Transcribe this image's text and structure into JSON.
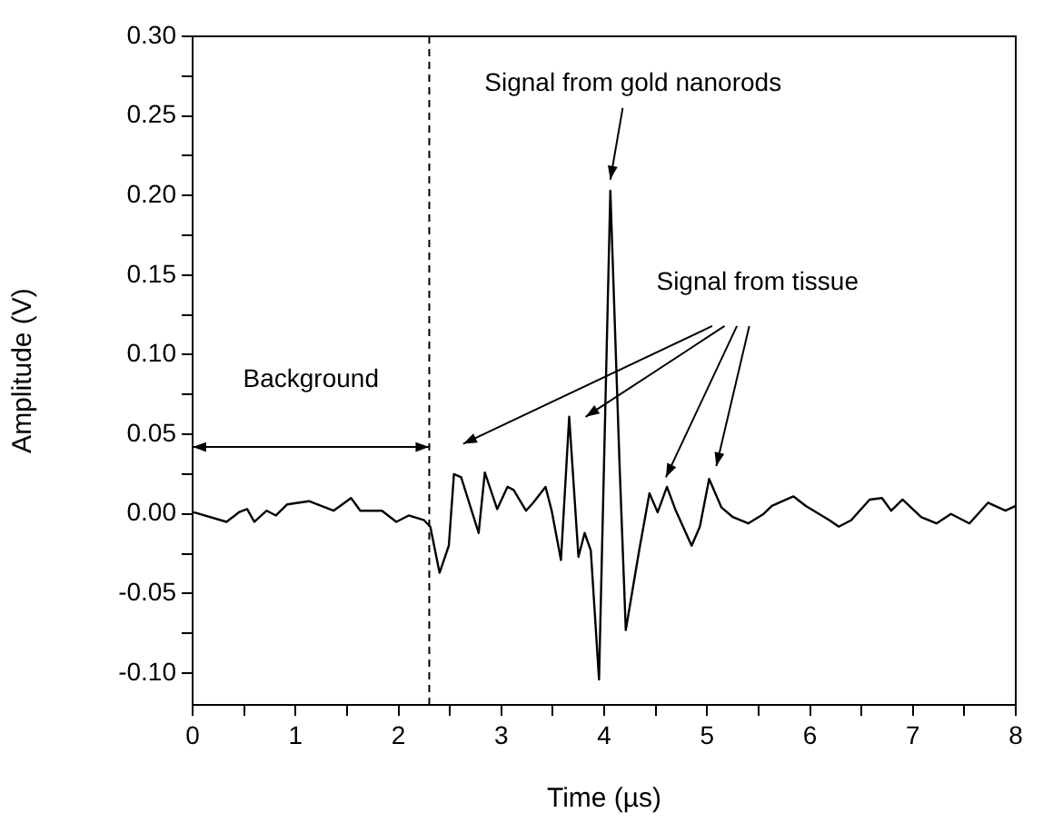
{
  "chart_data": {
    "type": "line",
    "xlabel": "Time (µs)",
    "ylabel": "Amplitude (V)",
    "xlim": [
      0,
      8
    ],
    "ylim": [
      -0.12,
      0.3
    ],
    "xticks": [
      0,
      {
        "value": 0.5,
        "label": null
      },
      1,
      {
        "value": 1.5,
        "label": null
      },
      2,
      {
        "value": 2.5,
        "label": null
      },
      3,
      {
        "value": 3.5,
        "label": null
      },
      4,
      {
        "value": 4.5,
        "label": null
      },
      5,
      {
        "value": 5.5,
        "label": null
      },
      6,
      {
        "value": 6.5,
        "label": null
      },
      7,
      {
        "value": 7.5,
        "label": null
      },
      8
    ],
    "yticks": [
      {
        "value": -0.1,
        "label": "-0.10"
      },
      {
        "value": -0.075,
        "label": null
      },
      {
        "value": -0.05,
        "label": "-0.05"
      },
      {
        "value": -0.025,
        "label": null
      },
      {
        "value": 0,
        "label": "0.00"
      },
      {
        "value": 0.025,
        "label": null
      },
      {
        "value": 0.05,
        "label": "0.05"
      },
      {
        "value": 0.075,
        "label": null
      },
      {
        "value": 0.1,
        "label": "0.10"
      },
      {
        "value": 0.125,
        "label": null
      },
      {
        "value": 0.15,
        "label": "0.15"
      },
      {
        "value": 0.175,
        "label": null
      },
      {
        "value": 0.2,
        "label": "0.20"
      },
      {
        "value": 0.225,
        "label": null
      },
      {
        "value": 0.25,
        "label": "0.25"
      },
      {
        "value": 0.275,
        "label": null
      },
      {
        "value": 0.3,
        "label": "0.30"
      }
    ],
    "marker": "none",
    "line_style": "solid",
    "series": [
      {
        "color": "#000000",
        "x": [
          0.01,
          0.33,
          0.45,
          0.53,
          0.6,
          0.72,
          0.81,
          0.92,
          1.13,
          1.37,
          1.54,
          1.63,
          1.84,
          1.98,
          2.1,
          2.25,
          2.31,
          2.4,
          2.49,
          2.54,
          2.61,
          2.78,
          2.84,
          2.96,
          3.06,
          3.12,
          3.24,
          3.31,
          3.43,
          3.49,
          3.58,
          3.66,
          3.75,
          3.81,
          3.87,
          3.95,
          4.06,
          4.15,
          4.21,
          4.34,
          4.44,
          4.52,
          4.61,
          4.69,
          4.85,
          4.93,
          5.02,
          5.14,
          5.25,
          5.4,
          5.55,
          5.63,
          5.84,
          5.96,
          6.19,
          6.28,
          6.4,
          6.58,
          6.7,
          6.79,
          6.9,
          7.08,
          7.23,
          7.37,
          7.55,
          7.73,
          7.9,
          8.0
        ],
        "values": [
          0.001,
          -0.005,
          0.001,
          0.003,
          -0.005,
          0.002,
          -0.001,
          0.006,
          0.008,
          0.002,
          0.01,
          0.002,
          0.002,
          -0.005,
          -0.001,
          -0.004,
          -0.008,
          -0.037,
          -0.02,
          0.025,
          0.023,
          -0.012,
          0.026,
          0.003,
          0.017,
          0.015,
          0.002,
          0.007,
          0.017,
          0.002,
          -0.029,
          0.061,
          -0.027,
          -0.012,
          -0.023,
          -0.104,
          0.203,
          0.03,
          -0.073,
          -0.023,
          0.013,
          0.001,
          0.017,
          0.003,
          -0.02,
          -0.008,
          0.022,
          0.004,
          -0.002,
          -0.006,
          0.0,
          0.005,
          0.011,
          0.005,
          -0.004,
          -0.008,
          -0.004,
          0.009,
          0.01,
          0.002,
          0.009,
          -0.002,
          -0.006,
          0.0,
          -0.006,
          0.007,
          0.002,
          0.005
        ]
      }
    ],
    "ref_lines": [
      {
        "axis": "x",
        "value": 2.3,
        "color": "#000000",
        "line_style": "dashed"
      }
    ],
    "annotations": [
      "Background",
      "Signal from gold nanorods",
      "Signal from tissue"
    ]
  }
}
